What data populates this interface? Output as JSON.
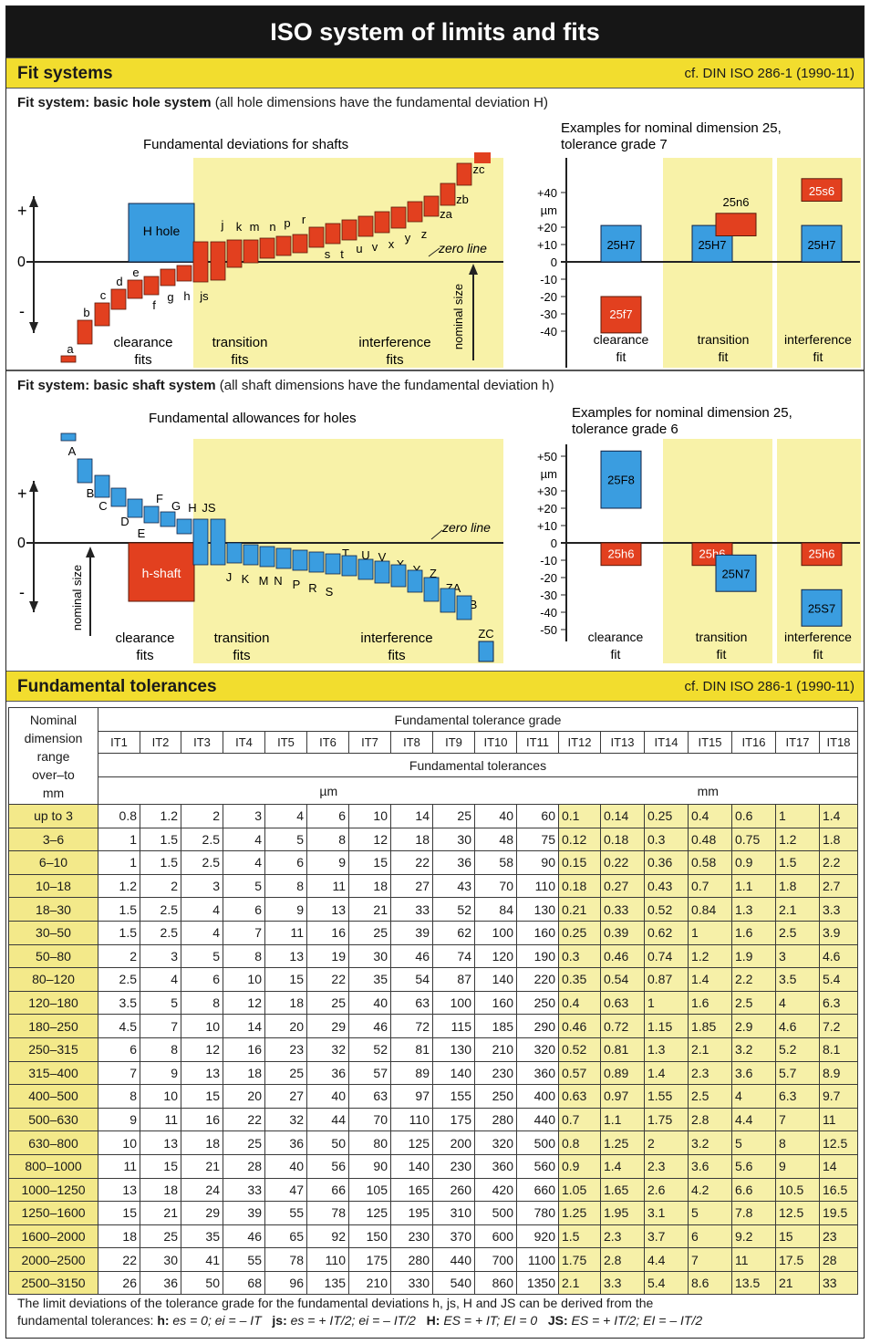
{
  "title": "ISO system of limits and fits",
  "fit_systems": {
    "heading": "Fit systems",
    "reference": "cf. DIN ISO 286-1 (1990-11)",
    "hole_system": {
      "title_bold": "Fit system: basic hole system",
      "title_rest": " (all hole dimensions have the fundamental deviation H)",
      "left_caption": "Fundamental deviations for shafts",
      "right_caption_1": "Examples for nominal dimension 25,",
      "right_caption_2": "tolerance grade 7",
      "base_label": "H hole",
      "zero_line": "zero line",
      "nominal_size": "nominal size",
      "shaft_letters": [
        "a",
        "b",
        "c",
        "d",
        "e",
        "f",
        "g",
        "h",
        "js",
        "j",
        "k",
        "m",
        "n",
        "p",
        "r",
        "s",
        "t",
        "u",
        "v",
        "x",
        "y",
        "z",
        "za",
        "zb",
        "zc"
      ],
      "zones": [
        {
          "l1": "clearance",
          "l2": "fits"
        },
        {
          "l1": "transition",
          "l2": "fits"
        },
        {
          "l1": "interference",
          "l2": "fits"
        }
      ],
      "scale_ticks": [
        "+40",
        "µm",
        "+20",
        "+10",
        "0",
        "-10",
        "-20",
        "-30",
        "-40"
      ],
      "examples": [
        {
          "hole": "25H7",
          "shaft": "25f7",
          "l1": "clearance",
          "l2": "fit"
        },
        {
          "hole": "25H7",
          "shaft": "25n6",
          "l1": "transition",
          "l2": "fit"
        },
        {
          "hole": "25H7",
          "shaft": "25s6",
          "l1": "interference",
          "l2": "fit"
        }
      ]
    },
    "shaft_system": {
      "title_bold": "Fit system: basic shaft system",
      "title_rest": " (all shaft dimensions have the fundamental deviation h)",
      "left_caption": "Fundamental allowances for holes",
      "right_caption_1": "Examples for nominal dimension 25,",
      "right_caption_2": "tolerance grade 6",
      "base_label": "h-shaft",
      "zero_line": "zero line",
      "nominal_size": "nominal size",
      "hole_letters": [
        "A",
        "B",
        "C",
        "D",
        "E",
        "F",
        "G",
        "H",
        "JS",
        "J",
        "K",
        "M",
        "N",
        "P",
        "R",
        "S",
        "T",
        "U",
        "V",
        "X",
        "Y",
        "Z",
        "ZA",
        "ZB",
        "ZC"
      ],
      "zones": [
        {
          "l1": "clearance",
          "l2": "fits"
        },
        {
          "l1": "transition",
          "l2": "fits"
        },
        {
          "l1": "interference",
          "l2": "fits"
        }
      ],
      "scale_ticks": [
        "+50",
        "µm",
        "+30",
        "+20",
        "+10",
        "0",
        "-10",
        "-20",
        "-30",
        "-40",
        "-50"
      ],
      "examples": [
        {
          "shaft": "25h6",
          "hole": "25F8",
          "l1": "clearance",
          "l2": "fit"
        },
        {
          "shaft": "25h6",
          "hole": "25N7",
          "l1": "transition",
          "l2": "fit"
        },
        {
          "shaft": "25h6",
          "hole": "25S7",
          "l1": "interference",
          "l2": "fit"
        }
      ]
    },
    "plus_sign": "+",
    "minus_sign": "-",
    "zero_sign": "0"
  },
  "tolerances": {
    "heading": "Fundamental tolerances",
    "reference": "cf. DIN ISO 286-1 (1990-11)",
    "col_head_1": "Nominal",
    "col_head_2": "dimension",
    "col_head_3": "range",
    "col_head_4": "over–to",
    "col_head_5": "mm",
    "grade_title": "Fundamental tolerance grade",
    "tol_title": "Fundamental tolerances",
    "unit_um": "µm",
    "unit_mm": "mm",
    "grades": [
      "IT1",
      "IT2",
      "IT3",
      "IT4",
      "IT5",
      "IT6",
      "IT7",
      "IT8",
      "IT9",
      "IT10",
      "IT11",
      "IT12",
      "IT13",
      "IT14",
      "IT15",
      "IT16",
      "IT17",
      "IT18"
    ],
    "rows": [
      [
        "up to 3",
        "0.8",
        "1.2",
        "2",
        "3",
        "4",
        "6",
        "10",
        "14",
        "25",
        "40",
        "60",
        "0.1",
        "0.14",
        "0.25",
        "0.4",
        "0.6",
        "1",
        "1.4"
      ],
      [
        "3–6",
        "1",
        "1.5",
        "2.5",
        "4",
        "5",
        "8",
        "12",
        "18",
        "30",
        "48",
        "75",
        "0.12",
        "0.18",
        "0.3",
        "0.48",
        "0.75",
        "1.2",
        "1.8"
      ],
      [
        "6–10",
        "1",
        "1.5",
        "2.5",
        "4",
        "6",
        "9",
        "15",
        "22",
        "36",
        "58",
        "90",
        "0.15",
        "0.22",
        "0.36",
        "0.58",
        "0.9",
        "1.5",
        "2.2"
      ],
      [
        "10–18",
        "1.2",
        "2",
        "3",
        "5",
        "8",
        "11",
        "18",
        "27",
        "43",
        "70",
        "110",
        "0.18",
        "0.27",
        "0.43",
        "0.7",
        "1.1",
        "1.8",
        "2.7"
      ],
      [
        "18–30",
        "1.5",
        "2.5",
        "4",
        "6",
        "9",
        "13",
        "21",
        "33",
        "52",
        "84",
        "130",
        "0.21",
        "0.33",
        "0.52",
        "0.84",
        "1.3",
        "2.1",
        "3.3"
      ],
      [
        "30–50",
        "1.5",
        "2.5",
        "4",
        "7",
        "11",
        "16",
        "25",
        "39",
        "62",
        "100",
        "160",
        "0.25",
        "0.39",
        "0.62",
        "1",
        "1.6",
        "2.5",
        "3.9"
      ],
      [
        "50–80",
        "2",
        "3",
        "5",
        "8",
        "13",
        "19",
        "30",
        "46",
        "74",
        "120",
        "190",
        "0.3",
        "0.46",
        "0.74",
        "1.2",
        "1.9",
        "3",
        "4.6"
      ],
      [
        "80–120",
        "2.5",
        "4",
        "6",
        "10",
        "15",
        "22",
        "35",
        "54",
        "87",
        "140",
        "220",
        "0.35",
        "0.54",
        "0.87",
        "1.4",
        "2.2",
        "3.5",
        "5.4"
      ],
      [
        "120–180",
        "3.5",
        "5",
        "8",
        "12",
        "18",
        "25",
        "40",
        "63",
        "100",
        "160",
        "250",
        "0.4",
        "0.63",
        "1",
        "1.6",
        "2.5",
        "4",
        "6.3"
      ],
      [
        "180–250",
        "4.5",
        "7",
        "10",
        "14",
        "20",
        "29",
        "46",
        "72",
        "115",
        "185",
        "290",
        "0.46",
        "0.72",
        "1.15",
        "1.85",
        "2.9",
        "4.6",
        "7.2"
      ],
      [
        "250–315",
        "6",
        "8",
        "12",
        "16",
        "23",
        "32",
        "52",
        "81",
        "130",
        "210",
        "320",
        "0.52",
        "0.81",
        "1.3",
        "2.1",
        "3.2",
        "5.2",
        "8.1"
      ],
      [
        "315–400",
        "7",
        "9",
        "13",
        "18",
        "25",
        "36",
        "57",
        "89",
        "140",
        "230",
        "360",
        "0.57",
        "0.89",
        "1.4",
        "2.3",
        "3.6",
        "5.7",
        "8.9"
      ],
      [
        "400–500",
        "8",
        "10",
        "15",
        "20",
        "27",
        "40",
        "63",
        "97",
        "155",
        "250",
        "400",
        "0.63",
        "0.97",
        "1.55",
        "2.5",
        "4",
        "6.3",
        "9.7"
      ],
      [
        "500–630",
        "9",
        "11",
        "16",
        "22",
        "32",
        "44",
        "70",
        "110",
        "175",
        "280",
        "440",
        "0.7",
        "1.1",
        "1.75",
        "2.8",
        "4.4",
        "7",
        "11"
      ],
      [
        "630–800",
        "10",
        "13",
        "18",
        "25",
        "36",
        "50",
        "80",
        "125",
        "200",
        "320",
        "500",
        "0.8",
        "1.25",
        "2",
        "3.2",
        "5",
        "8",
        "12.5"
      ],
      [
        "800–1000",
        "11",
        "15",
        "21",
        "28",
        "40",
        "56",
        "90",
        "140",
        "230",
        "360",
        "560",
        "0.9",
        "1.4",
        "2.3",
        "3.6",
        "5.6",
        "9",
        "14"
      ],
      [
        "1000–1250",
        "13",
        "18",
        "24",
        "33",
        "47",
        "66",
        "105",
        "165",
        "260",
        "420",
        "660",
        "1.05",
        "1.65",
        "2.6",
        "4.2",
        "6.6",
        "10.5",
        "16.5"
      ],
      [
        "1250–1600",
        "15",
        "21",
        "29",
        "39",
        "55",
        "78",
        "125",
        "195",
        "310",
        "500",
        "780",
        "1.25",
        "1.95",
        "3.1",
        "5",
        "7.8",
        "12.5",
        "19.5"
      ],
      [
        "1600–2000",
        "18",
        "25",
        "35",
        "46",
        "65",
        "92",
        "150",
        "230",
        "370",
        "600",
        "920",
        "1.5",
        "2.3",
        "3.7",
        "6",
        "9.2",
        "15",
        "23"
      ],
      [
        "2000–2500",
        "22",
        "30",
        "41",
        "55",
        "78",
        "110",
        "175",
        "280",
        "440",
        "700",
        "1100",
        "1.75",
        "2.8",
        "4.4",
        "7",
        "11",
        "17.5",
        "28"
      ],
      [
        "2500–3150",
        "26",
        "36",
        "50",
        "68",
        "96",
        "135",
        "210",
        "330",
        "540",
        "860",
        "1350",
        "2.1",
        "3.3",
        "5.4",
        "8.6",
        "13.5",
        "21",
        "33"
      ]
    ]
  },
  "footnote": {
    "line1": "The limit deviations of the tolerance grade for the fundamental deviations h, js, H and JS can be derived from the",
    "line2_a": "fundamental tolerances: ",
    "h_label": "h:",
    "h_text": " es = 0; ei = – IT",
    "js_label": "js:",
    "js_text": " es = + IT/2; ei = – IT/2",
    "H_label": "H:",
    "H_text": " ES = + IT; EI = 0",
    "JS_label": "JS:",
    "JS_text": " ES = + IT/2; EI = – IT/2"
  },
  "colors": {
    "shaft_red": "#e2401f",
    "hole_blue": "#3a9de0",
    "zone_yellow": "#f8f2a8",
    "header_yellow": "#f2dd2e"
  }
}
